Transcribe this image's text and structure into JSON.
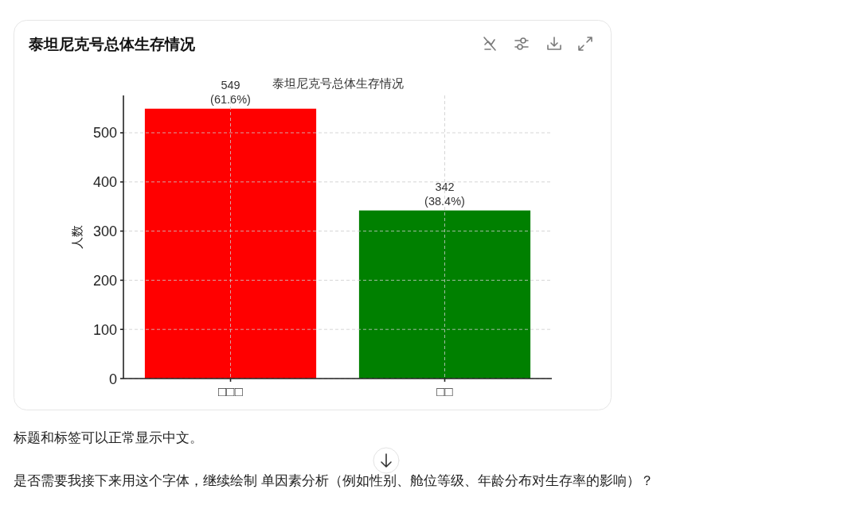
{
  "chart_data": {
    "type": "bar",
    "title": "泰坦尼克号总体生存情况",
    "subtitle": "泰坦尼克号总体生存情况",
    "ylabel": "人数",
    "categories": [
      "□□□",
      "□□"
    ],
    "values": [
      549,
      342
    ],
    "colors": [
      "#ff0000",
      "#008000"
    ],
    "value_labels": [
      "549\n(61.6%)",
      "342\n(38.4%)"
    ],
    "ylim": [
      0,
      576
    ],
    "yticks": [
      0,
      100,
      200,
      300,
      400,
      500
    ],
    "grid": true,
    "annotations": [
      "标题和标签可以正常显示中文。",
      "是否需要我接下来用这个字体，继续绘制 单因素分析（例如性别、舱位等级、年龄分布对生存率的影响）？"
    ]
  }
}
